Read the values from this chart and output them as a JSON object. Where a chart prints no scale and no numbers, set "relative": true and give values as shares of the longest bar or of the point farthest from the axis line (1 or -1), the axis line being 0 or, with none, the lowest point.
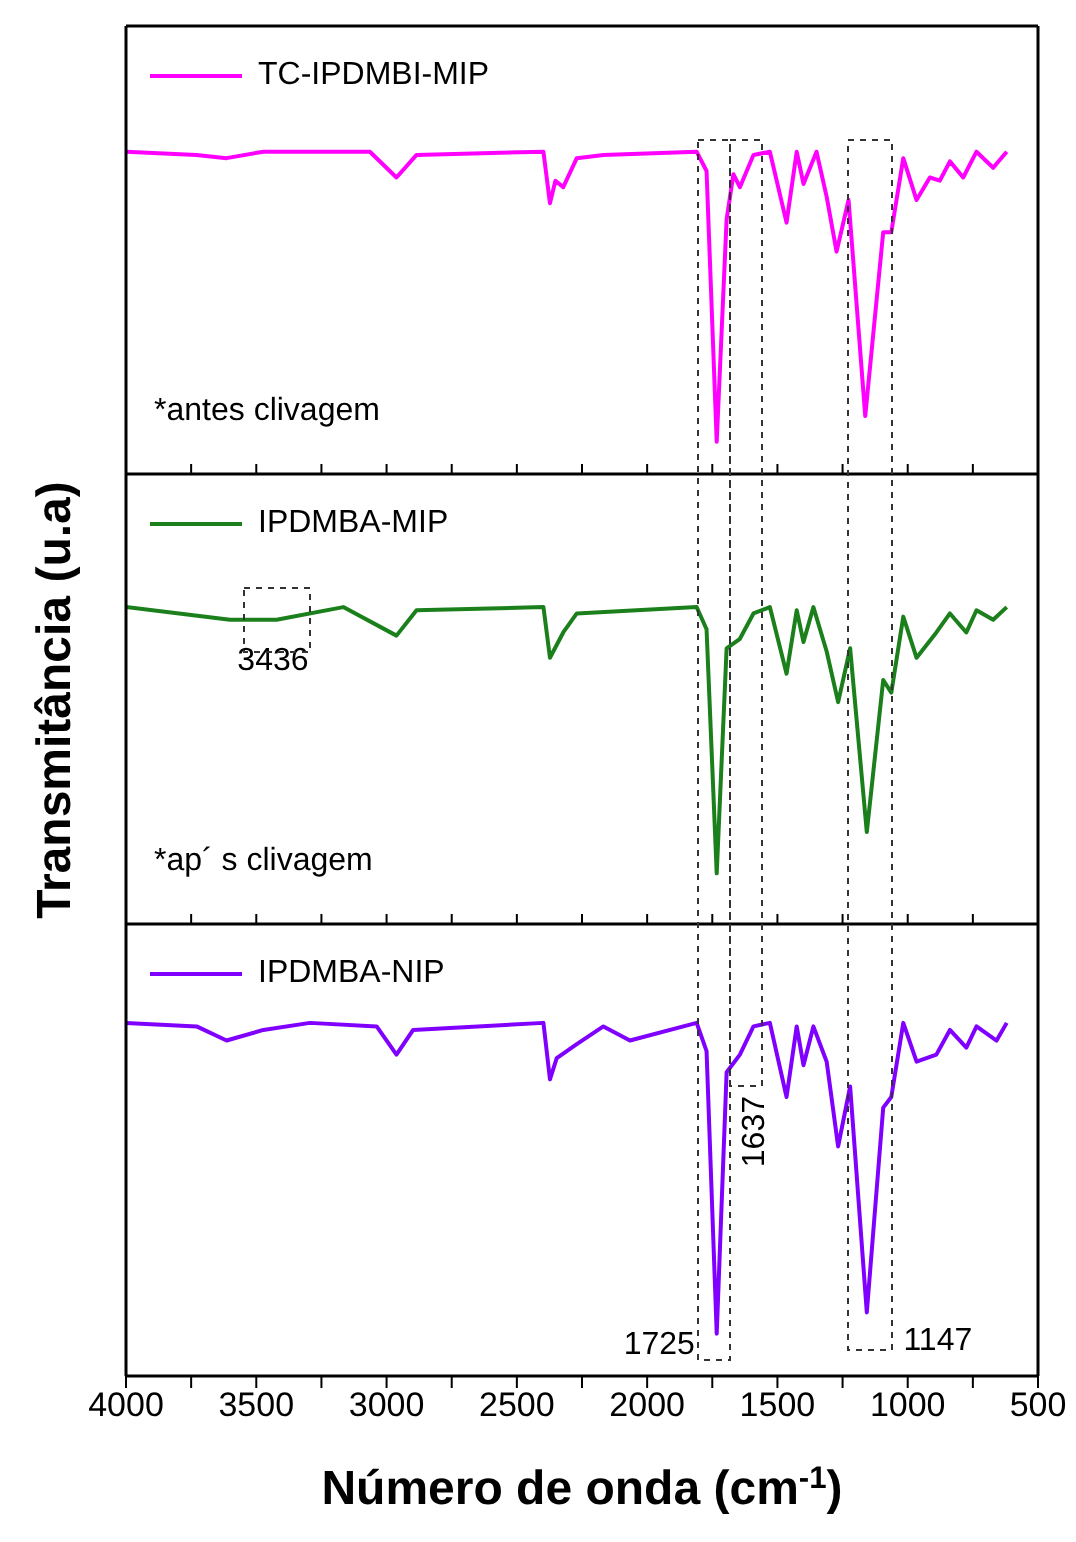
{
  "chart_data": [
    {
      "type": "line",
      "xlim": [
        4000,
        500
      ],
      "xticks": [
        4000,
        {
          "value": 3750,
          "label": null
        },
        3500,
        {
          "value": 3250,
          "label": null
        },
        3000,
        {
          "value": 2750,
          "label": null
        },
        2500,
        {
          "value": 2250,
          "label": null
        },
        2000,
        {
          "value": 1750,
          "label": null
        },
        1500,
        {
          "value": 1250,
          "label": null
        },
        1000,
        {
          "value": 750,
          "label": null
        },
        500
      ],
      "relative": true,
      "tick_labels": false,
      "legend": "top left",
      "annotations": [
        "*antes clivagem"
      ],
      "x": [
        4000,
        3729,
        3614,
        3473,
        3064,
        2962,
        2885,
        2398,
        2373,
        2352,
        2322,
        2270,
        2168,
        1810,
        1772,
        1733,
        1695,
        1669,
        1644,
        1592,
        1529,
        1465,
        1426,
        1400,
        1350,
        1311,
        1273,
        1227,
        1163,
        1094,
        1063,
        1017,
        966,
        915,
        877,
        838,
        787,
        736,
        672,
        620
      ],
      "series": [
        {
          "name": "TC-IPDMBI-MIP",
          "color": "#ff00ff",
          "values": [
            1.0,
            0.99,
            0.98,
            1.0,
            1.0,
            0.92,
            0.99,
            1.0,
            0.84,
            0.91,
            0.89,
            0.98,
            0.99,
            1.0,
            0.94,
            0.1,
            0.79,
            0.93,
            0.89,
            0.99,
            1.0,
            0.78,
            1.0,
            0.9,
            1.0,
            0.86,
            0.69,
            0.85,
            0.18,
            0.75,
            0.75,
            0.98,
            0.85,
            0.92,
            0.91,
            0.97,
            0.92,
            1.0,
            0.95,
            1.0
          ]
        }
      ]
    },
    {
      "type": "line",
      "xlim": [
        4000,
        500
      ],
      "xticks": [
        4000,
        {
          "value": 3750,
          "label": null
        },
        3500,
        {
          "value": 3250,
          "label": null
        },
        3000,
        {
          "value": 2750,
          "label": null
        },
        2500,
        {
          "value": 2250,
          "label": null
        },
        2000,
        {
          "value": 1750,
          "label": null
        },
        1500,
        {
          "value": 1250,
          "label": null
        },
        1000,
        {
          "value": 750,
          "label": null
        },
        500
      ],
      "relative": true,
      "tick_labels": false,
      "legend": "top left",
      "ylabel": "Transmitância (u.a)",
      "annotations": [
        {
          "text": "3436",
          "x": 3436,
          "y": 0.96
        },
        "*ap´ s clivagem"
      ],
      "x": [
        4000,
        3601,
        3422,
        3166,
        2962,
        2885,
        2398,
        2373,
        2322,
        2270,
        1810,
        1772,
        1733,
        1695,
        1644,
        1592,
        1529,
        1465,
        1426,
        1400,
        1362,
        1311,
        1267,
        1221,
        1157,
        1094,
        1063,
        1017,
        966,
        890,
        838,
        775,
        736,
        672,
        620
      ],
      "series": [
        {
          "name": "IPDMBA-MIP",
          "color": "#1b801b",
          "values": [
            1.0,
            0.96,
            0.96,
            1.0,
            0.91,
            0.99,
            1.0,
            0.84,
            0.92,
            0.98,
            1.0,
            0.93,
            0.16,
            0.87,
            0.9,
            0.98,
            1.0,
            0.79,
            0.99,
            0.89,
            1.0,
            0.86,
            0.7,
            0.87,
            0.29,
            0.77,
            0.73,
            0.97,
            0.84,
            0.92,
            0.98,
            0.92,
            0.99,
            0.96,
            1.0
          ]
        }
      ]
    },
    {
      "type": "line",
      "xlim": [
        4000,
        500
      ],
      "xticks": [
        4000,
        {
          "value": 3750,
          "label": null
        },
        3500,
        {
          "value": 3250,
          "label": null
        },
        3000,
        {
          "value": 2750,
          "label": null
        },
        2500,
        {
          "value": 2250,
          "label": null
        },
        2000,
        {
          "value": 1750,
          "label": null
        },
        1500,
        {
          "value": 1250,
          "label": null
        },
        1000,
        {
          "value": 750,
          "label": null
        },
        500
      ],
      "relative": true,
      "tick_labels": "x",
      "legend": "top left",
      "xlabel": "Número de onda (cm$^{-1}$)",
      "annotations": [
        {
          "text": "1725",
          "x": 1725,
          "y": 0.12
        },
        {
          "text": "1637",
          "x": 1637,
          "y": 0.91
        },
        {
          "text": "1147",
          "x": 1147,
          "y": 0.18
        }
      ],
      "x": [
        4000,
        3729,
        3614,
        3473,
        3294,
        3038,
        2962,
        2898,
        2398,
        2373,
        2347,
        2270,
        2168,
        2066,
        1810,
        1772,
        1733,
        1695,
        1644,
        1592,
        1529,
        1465,
        1426,
        1400,
        1362,
        1311,
        1267,
        1221,
        1157,
        1094,
        1063,
        1017,
        966,
        890,
        838,
        775,
        736,
        659,
        620
      ],
      "series": [
        {
          "name": "IPDMBA-NIP",
          "color": "#8000ff",
          "values": [
            1.0,
            0.99,
            0.95,
            0.98,
            1.0,
            0.99,
            0.91,
            0.98,
            1.0,
            0.84,
            0.9,
            0.94,
            0.99,
            0.95,
            1.0,
            0.92,
            0.12,
            0.86,
            0.91,
            0.99,
            1.0,
            0.79,
            0.99,
            0.88,
            0.99,
            0.89,
            0.65,
            0.82,
            0.18,
            0.76,
            0.79,
            1.0,
            0.89,
            0.91,
            0.98,
            0.93,
            0.99,
            0.95,
            1.0
          ]
        }
      ]
    }
  ]
}
